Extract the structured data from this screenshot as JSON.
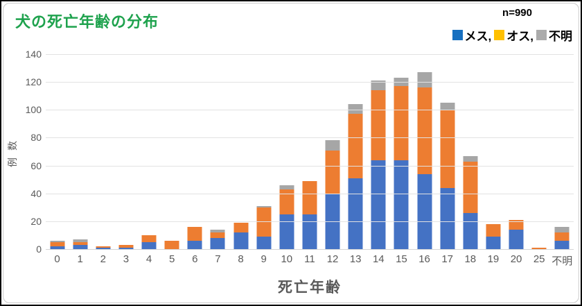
{
  "title": "犬の死亡年齢の分布",
  "sample_label": "n=990",
  "legend": {
    "items": [
      {
        "name": "mesu",
        "label": "メス,",
        "swatch_color": "#1770c0"
      },
      {
        "name": "osu",
        "label": "オス,",
        "swatch_color": "#ffc000"
      },
      {
        "name": "fumei",
        "label": "不明",
        "swatch_color": "#ababab"
      }
    ]
  },
  "colors": {
    "title_green": "#1ea24d",
    "bar_mesu": "#4472c4",
    "bar_osu": "#ed7d31",
    "bar_fumei": "#a6a6a6",
    "axis_text": "#595959",
    "gridline": "#e2e2e2"
  },
  "y_ticks": [
    0,
    20,
    40,
    60,
    80,
    100,
    120,
    140
  ],
  "chart_data": {
    "type": "bar",
    "stacked": true,
    "title": "犬の死亡年齢の分布",
    "xlabel": "死亡年齢",
    "ylabel": "例数",
    "ylim": [
      0,
      140
    ],
    "ytick_step": 20,
    "grid": true,
    "legend_position": "top-right",
    "sample_size": 990,
    "categories": [
      "0",
      "1",
      "2",
      "3",
      "4",
      "5",
      "6",
      "7",
      "8",
      "9",
      "10",
      "11",
      "12",
      "13",
      "14",
      "15",
      "16",
      "17",
      "18",
      "19",
      "20",
      "25",
      "不明"
    ],
    "series": [
      {
        "name": "メス",
        "color": "#4472c4",
        "values": [
          2,
          3,
          1,
          1,
          5,
          0,
          6,
          8,
          12,
          9,
          25,
          25,
          40,
          51,
          64,
          64,
          54,
          44,
          26,
          9,
          14,
          0,
          6
        ]
      },
      {
        "name": "オス",
        "color": "#ed7d31",
        "values": [
          3,
          2,
          1,
          2,
          5,
          6,
          10,
          4,
          7,
          21,
          18,
          24,
          31,
          46,
          50,
          53,
          62,
          56,
          37,
          9,
          7,
          1,
          6
        ]
      },
      {
        "name": "不明",
        "color": "#a6a6a6",
        "values": [
          1,
          2,
          0,
          0,
          0,
          0,
          0,
          2,
          0,
          1,
          3,
          0,
          7,
          7,
          7,
          6,
          11,
          5,
          4,
          0,
          0,
          0,
          4
        ]
      }
    ],
    "totals": [
      6,
      7,
      2,
      3,
      10,
      6,
      16,
      14,
      19,
      31,
      46,
      49,
      78,
      104,
      121,
      123,
      127,
      105,
      67,
      18,
      21,
      1,
      16
    ]
  }
}
